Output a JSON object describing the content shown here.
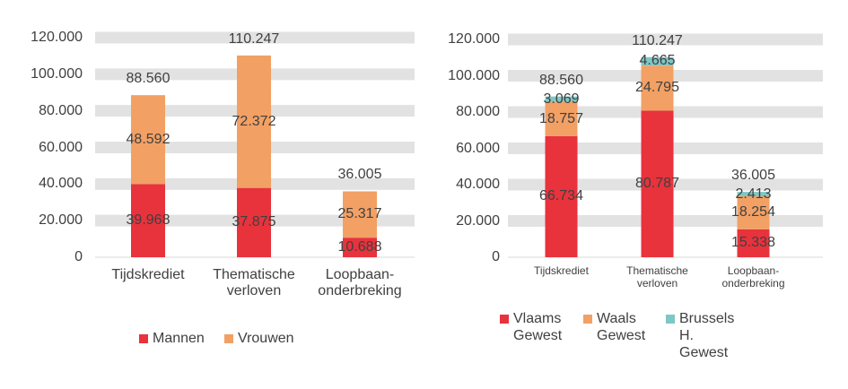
{
  "chart_data": [
    {
      "type": "bar",
      "stacked": true,
      "categories": [
        "Tijdskrediet",
        "Thematische verloven",
        "Loopbaan-onderbreking"
      ],
      "series": [
        {
          "name": "Mannen",
          "color": "#e8323c",
          "values": [
            39968,
            37875,
            10688
          ],
          "value_labels": [
            "39.968",
            "37.875",
            "10.688"
          ]
        },
        {
          "name": "Vrouwen",
          "color": "#f2a064",
          "values": [
            48592,
            72372,
            25317
          ],
          "value_labels": [
            "48.592",
            "72.372",
            "25.317"
          ]
        }
      ],
      "totals": {
        "values": [
          88560,
          110247,
          36005
        ],
        "value_labels": [
          "88.560",
          "110.247",
          "36.005"
        ]
      },
      "ylim": [
        0,
        120000
      ],
      "yticks": [
        0,
        {
          "value": 20000,
          "label": "20.000"
        },
        {
          "value": 40000,
          "label": "40.000"
        },
        {
          "value": 60000,
          "label": "60.000"
        },
        {
          "value": 80000,
          "label": "80.000"
        },
        {
          "value": 100000,
          "label": "100.000"
        },
        {
          "value": 120000,
          "label": "120.000"
        }
      ],
      "grid": true,
      "legend": "bottom"
    },
    {
      "type": "bar",
      "stacked": true,
      "categories": [
        "Tijdskrediet",
        "Thematische verloven",
        "Loopbaan-onderbreking"
      ],
      "series": [
        {
          "name": "Vlaams Gewest",
          "color": "#e8323c",
          "values": [
            66734,
            80787,
            15338
          ],
          "value_labels": [
            "66.734",
            "80.787",
            "15.338"
          ]
        },
        {
          "name": "Waals Gewest",
          "color": "#f2a064",
          "values": [
            18757,
            24795,
            18254
          ],
          "value_labels": [
            "18.757",
            "24.795",
            "18.254"
          ]
        },
        {
          "name": "Brussels H. Gewest",
          "color": "#7fc7c6",
          "values": [
            3069,
            4665,
            2413
          ],
          "value_labels": [
            "3.069",
            "4.665",
            "2.413"
          ]
        }
      ],
      "totals": {
        "values": [
          88560,
          110247,
          36005
        ],
        "value_labels": [
          "88.560",
          "110.247",
          "36.005"
        ]
      },
      "ylim": [
        0,
        120000
      ],
      "yticks": [
        0,
        {
          "value": 20000,
          "label": "20.000"
        },
        {
          "value": 40000,
          "label": "40.000"
        },
        {
          "value": 60000,
          "label": "60.000"
        },
        {
          "value": 80000,
          "label": "80.000"
        },
        {
          "value": 100000,
          "label": "100.000"
        },
        {
          "value": 120000,
          "label": "120.000"
        }
      ],
      "grid": true,
      "legend": "bottom"
    }
  ]
}
